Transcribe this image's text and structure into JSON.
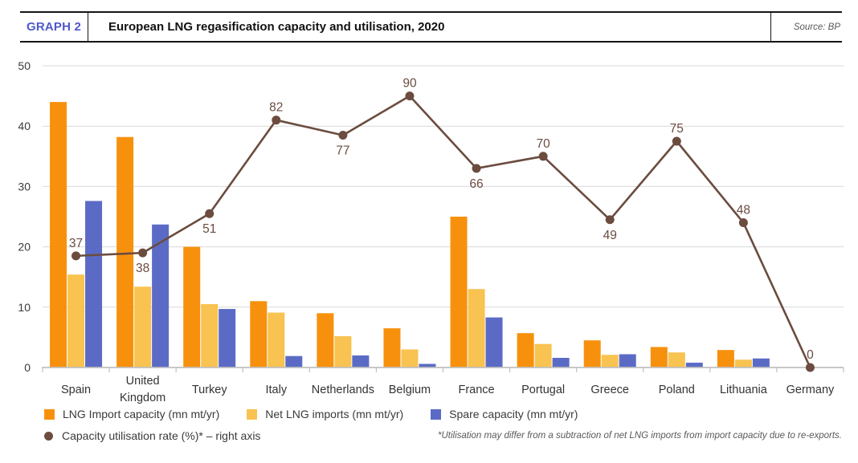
{
  "header": {
    "tag": "GRAPH 2",
    "title": "European LNG regasification capacity and utilisation, 2020",
    "source": "Source: BP"
  },
  "footnote": "*Utilisation may differ from a subtraction of net LNG imports from import capacity due to re-exports.",
  "colors": {
    "capacity_orange": "#F7910D",
    "imports_yellow": "#F8C350",
    "spare_blue": "#5B6BC5",
    "utilisation_brown": "#6B4C3F",
    "tag_blue": "#4E59C9",
    "gridline": "#D9D9D9",
    "axis_line": "#C1C1C1",
    "axis_text": "#3a3a3a",
    "category_text": "#333333"
  },
  "chart_data": {
    "type": "bar",
    "subtype": "grouped bars with overlaid line on right axis",
    "title": "European LNG regasification capacity and utilisation, 2020",
    "categories": [
      "Spain",
      "United Kingdom",
      "Turkey",
      "Italy",
      "Netherlands",
      "Belgium",
      "France",
      "Portugal",
      "Greece",
      "Poland",
      "Lithuania",
      "Germany"
    ],
    "series": [
      {
        "name": "LNG Import capacity (mn mt/yr)",
        "type": "bar",
        "color_key": "capacity_orange",
        "values": [
          44,
          38.2,
          20,
          11,
          9,
          6.5,
          25,
          5.7,
          4.5,
          3.4,
          2.9,
          0
        ]
      },
      {
        "name": "Net LNG imports (mn mt/yr)",
        "type": "bar",
        "color_key": "imports_yellow",
        "values": [
          15.4,
          13.4,
          10.5,
          9.1,
          5.2,
          3.0,
          13,
          3.9,
          2.1,
          2.5,
          1.3,
          0
        ]
      },
      {
        "name": "Spare capacity (mn mt/yr)",
        "type": "bar",
        "color_key": "spare_blue",
        "values": [
          27.6,
          23.7,
          9.7,
          1.9,
          2.0,
          0.6,
          8.3,
          1.6,
          2.2,
          0.8,
          1.5,
          0
        ]
      },
      {
        "name": "Capacity utilisation rate (%)* – right axis",
        "type": "line",
        "axis": "right",
        "color_key": "utilisation_brown",
        "values": [
          37,
          38,
          51,
          82,
          77,
          90,
          66,
          70,
          49,
          75,
          48,
          0
        ],
        "label_positions": [
          "above",
          "below",
          "below",
          "above",
          "below",
          "above",
          "below",
          "above",
          "below",
          "above",
          "above",
          "above"
        ]
      }
    ],
    "left_axis": {
      "min": 0,
      "max": 50,
      "ticks": [
        0,
        10,
        20,
        30,
        40,
        50
      ]
    },
    "right_axis": {
      "min": 0,
      "max": 100,
      "labels_shown": false
    },
    "grid": true,
    "legend_position": "bottom"
  }
}
